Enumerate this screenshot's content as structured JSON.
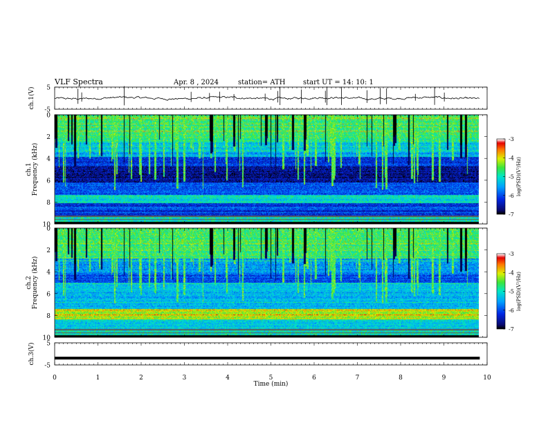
{
  "header": {
    "title": "VLF  Spectra",
    "date": "Apr. 8  , 2024",
    "station": "station= ATH",
    "start_ut": "start  UT  =    14: 10: 1"
  },
  "chart_data": [
    {
      "type": "line",
      "name": "ch1-waveform",
      "ylabel": "ch.1(V)",
      "ylim": [
        -5,
        5
      ],
      "yticks": [
        "5",
        "-5"
      ],
      "xlim": [
        0,
        10
      ],
      "trace_span_min": [
        0,
        9.83
      ],
      "trace_color": "#000000"
    },
    {
      "type": "heatmap",
      "name": "ch1-spectrogram",
      "ylabel": "ch.1\nFrequency  (kHz)",
      "ylim": [
        0,
        10
      ],
      "yticks": [
        "0",
        "2",
        "4",
        "6",
        "8",
        "10"
      ],
      "xlim": [
        0,
        10
      ],
      "data_span_min": [
        0,
        9.83
      ],
      "colorbar": {
        "label": "log(PSD)(V²/Hz)",
        "range": [
          -7,
          -3
        ],
        "ticks": [
          "-3",
          "-4",
          "-5",
          "-6",
          "-7"
        ]
      }
    },
    {
      "type": "heatmap",
      "name": "ch2-spectrogram",
      "ylabel": "ch.2\nFrequency  (kHz)",
      "ylim": [
        0,
        10
      ],
      "yticks": [
        "0",
        "2",
        "4",
        "6",
        "8",
        "10"
      ],
      "xlim": [
        0,
        10
      ],
      "data_span_min": [
        0,
        9.83
      ],
      "colorbar": {
        "label": "log(PSD)(V²/Hz)",
        "range": [
          -7,
          -3
        ],
        "ticks": [
          "-3",
          "-4",
          "-5",
          "-6",
          "-7"
        ]
      }
    },
    {
      "type": "line",
      "name": "ch3-waveform",
      "ylabel": "ch.3(V)",
      "ylim": [
        -5,
        5
      ],
      "yticks": [
        "5",
        "-5"
      ],
      "xlim": [
        0,
        10
      ],
      "xlabel": "Time  (min)",
      "xticks": [
        "0",
        "1",
        "2",
        "3",
        "4",
        "5",
        "6",
        "7",
        "8",
        "9",
        "10"
      ],
      "trace_level_v": -1.9,
      "trace_span_min": [
        0,
        9.83
      ]
    }
  ]
}
